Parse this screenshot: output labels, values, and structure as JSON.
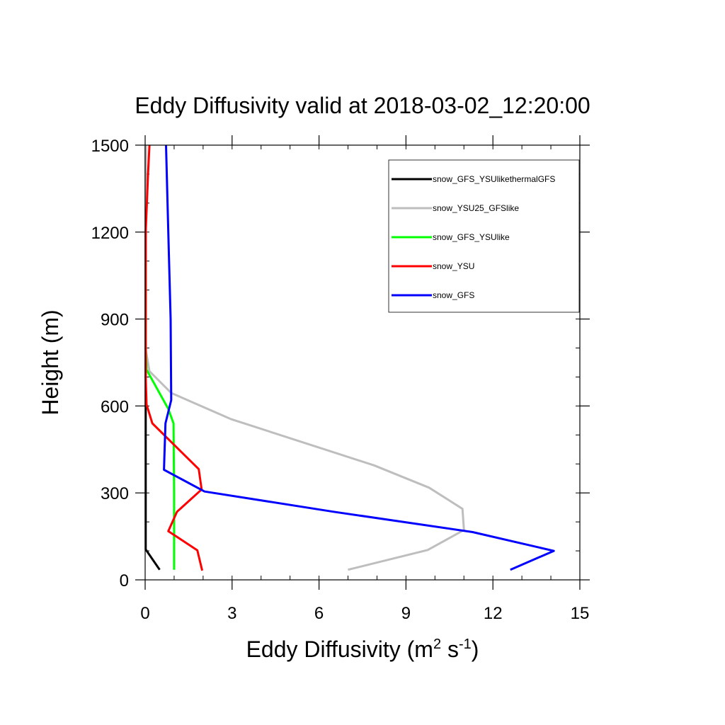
{
  "chart_data": {
    "type": "line",
    "title": "Eddy Diffusivity valid at 2018-03-02_12:20:00",
    "xlabel": {
      "text": "Eddy Diffusivity (m",
      "sup1": "2",
      "mid": " s",
      "sup2": "-1",
      "end": ")"
    },
    "ylabel": "Height (m)",
    "xlim": [
      0,
      15
    ],
    "ylim": [
      0,
      1500
    ],
    "xticks": [
      "0",
      "3",
      "6",
      "9",
      "12",
      "15"
    ],
    "yticks": [
      "0",
      "300",
      "600",
      "900",
      "1200",
      "1500"
    ],
    "x_minor_step": 1,
    "y_minor_step": 100,
    "legend_position": "top-right",
    "series": [
      {
        "name": "snow_GFS_YSUlikethermalGFS",
        "color": "#000000",
        "points": [
          [
            0.5,
            35
          ],
          [
            0.02,
            105
          ],
          [
            0.02,
            300
          ],
          [
            0.02,
            600
          ],
          [
            0.02,
            900
          ],
          [
            0.02,
            1200
          ],
          [
            0.02,
            1500
          ]
        ]
      },
      {
        "name": "snow_YSU25_GFSlike",
        "color": "#bebebe",
        "points": [
          [
            7.0,
            35
          ],
          [
            9.75,
            103
          ],
          [
            11.0,
            172
          ],
          [
            10.95,
            245
          ],
          [
            9.8,
            318
          ],
          [
            7.9,
            395
          ],
          [
            2.95,
            555
          ],
          [
            0.9,
            645
          ],
          [
            0.15,
            720
          ],
          [
            0.03,
            790
          ],
          [
            0.02,
            900
          ],
          [
            0.02,
            1200
          ],
          [
            0.02,
            1500
          ]
        ]
      },
      {
        "name": "snow_GFS_YSUlike",
        "color": "#00ff00",
        "points": [
          [
            1.0,
            35
          ],
          [
            1.0,
            300
          ],
          [
            0.98,
            540
          ],
          [
            0.8,
            590
          ],
          [
            0.05,
            725
          ],
          [
            0.02,
            800
          ],
          [
            0.02,
            1100
          ]
        ]
      },
      {
        "name": "snow_YSU",
        "color": "#ff0000",
        "points": [
          [
            1.97,
            32
          ],
          [
            1.8,
            102
          ],
          [
            0.8,
            168
          ],
          [
            1.1,
            235
          ],
          [
            1.95,
            312
          ],
          [
            1.85,
            382
          ],
          [
            0.25,
            540
          ],
          [
            0.05,
            605
          ],
          [
            0.02,
            700
          ],
          [
            0.02,
            1000
          ],
          [
            0.02,
            1200
          ],
          [
            0.1,
            1400
          ],
          [
            0.15,
            1500
          ]
        ]
      },
      {
        "name": "snow_GFS",
        "color": "#0000ff",
        "points": [
          [
            12.6,
            35
          ],
          [
            14.1,
            100
          ],
          [
            11.3,
            165
          ],
          [
            6.5,
            235
          ],
          [
            2.05,
            305
          ],
          [
            0.65,
            380
          ],
          [
            0.7,
            540
          ],
          [
            0.9,
            620
          ],
          [
            0.88,
            900
          ],
          [
            0.8,
            1200
          ],
          [
            0.72,
            1500
          ]
        ]
      }
    ]
  }
}
